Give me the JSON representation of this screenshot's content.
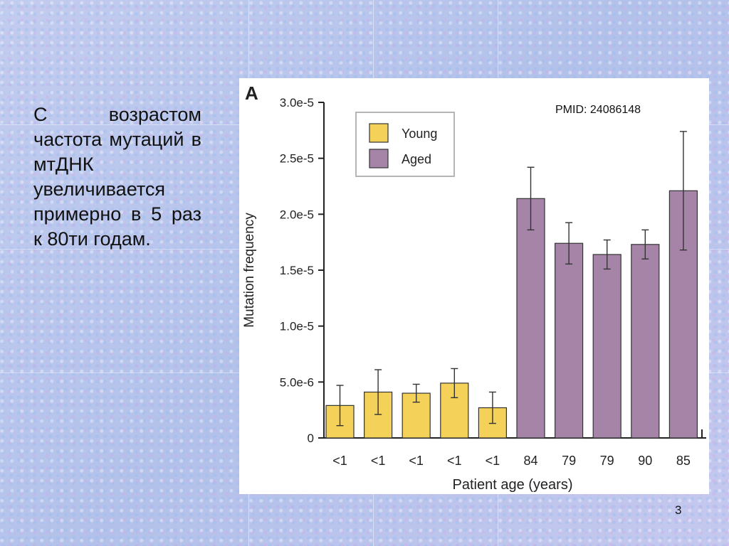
{
  "slide": {
    "text": "С возрастом частота мутаций в мтДНК увеличивается примерно в 5 раз к 80ти годам.",
    "page_number": "3"
  },
  "figure": {
    "panel_label": "A",
    "pmid": "PMID: 24086148"
  },
  "colors": {
    "young": "#f4d158",
    "aged": "#a684a8",
    "axis": "#222222"
  },
  "chart_data": {
    "type": "bar",
    "title": "",
    "xlabel": "Patient age (years)",
    "ylabel": "Mutation frequency",
    "ylim": [
      0,
      3e-05
    ],
    "yticks": [
      0,
      5e-06,
      1e-05,
      1.5e-05,
      2e-05,
      2.5e-05,
      3e-05
    ],
    "ytick_labels": [
      "0",
      "5.0e-6",
      "1.0e-5",
      "1.5e-5",
      "2.0e-5",
      "2.5e-5",
      "3.0e-5"
    ],
    "categories": [
      "<1",
      "<1",
      "<1",
      "<1",
      "<1",
      "84",
      "79",
      "79",
      "90",
      "85"
    ],
    "values": [
      2.9e-06,
      4.1e-06,
      4e-06,
      4.9e-06,
      2.7e-06,
      2.14e-05,
      1.74e-05,
      1.64e-05,
      1.73e-05,
      2.21e-05
    ],
    "error": [
      1.8e-06,
      2e-06,
      8e-07,
      1.3e-06,
      1.4e-06,
      2.8e-06,
      1.85e-06,
      1.3e-06,
      1.3e-06,
      5.3e-06
    ],
    "groups": [
      "Young",
      "Young",
      "Young",
      "Young",
      "Young",
      "Aged",
      "Aged",
      "Aged",
      "Aged",
      "Aged"
    ],
    "legend": {
      "entries": [
        "Young",
        "Aged"
      ],
      "placement": "top-left"
    },
    "grid": false
  }
}
